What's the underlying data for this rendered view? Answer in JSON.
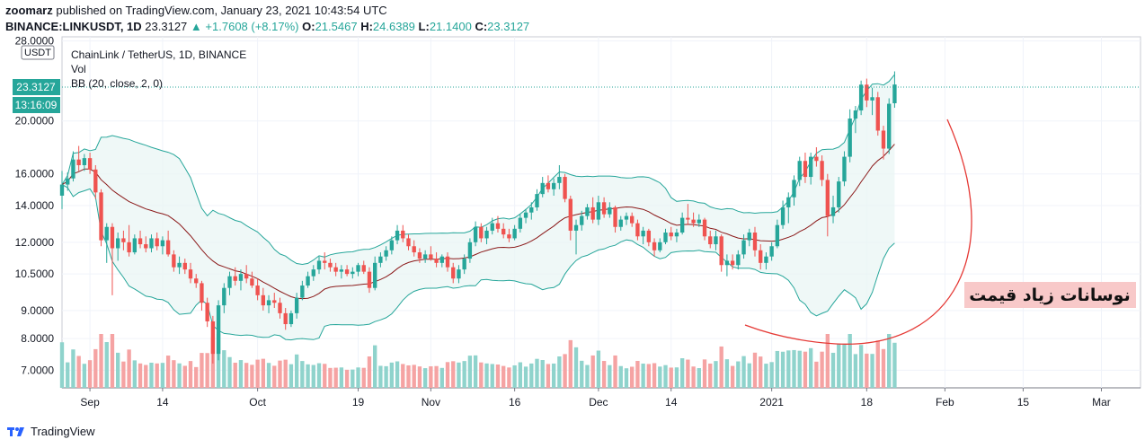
{
  "header": {
    "author": "zoomarz",
    "published_text": "published on TradingView.com, January 23, 2021 10:43:54 UTC",
    "symbol": "BINANCE:LINKUSDT, 1D",
    "last": "23.3127",
    "change_arrow": "▲",
    "change": "+1.7608 (+8.17%)",
    "o_label": "O:",
    "o": "21.5467",
    "h_label": "H:",
    "h": "24.6389",
    "l_label": "L:",
    "l": "21.1400",
    "c_label": "C:",
    "c": "23.3127"
  },
  "legend": {
    "title": "ChainLink / TetherUS, 1D, BINANCE",
    "vol": "Vol",
    "bb": "BB (20, close, 2, 0)"
  },
  "axis": {
    "currency_label": "USDT",
    "y_ticks": [
      "28.0000",
      "20.0000",
      "16.0000",
      "14.0000",
      "12.0000",
      "10.5000",
      "9.0000",
      "8.0000",
      "7.0000"
    ],
    "last_price_label": "23.3127",
    "countdown_label": "13:16:09",
    "x_ticks": [
      "Sep",
      "14",
      "Oct",
      "19",
      "Nov",
      "16",
      "Dec",
      "14",
      "2021",
      "18",
      "Feb",
      "15",
      "Mar"
    ]
  },
  "annotation": {
    "text": "نوسانات زیاد قیمت"
  },
  "footer": {
    "brand": "TradingView"
  },
  "colors": {
    "up": "#26a69a",
    "down": "#ef5350",
    "vol_up": "#8fd3cc",
    "vol_down": "#f5a3a3",
    "bb_band": "#26a69a",
    "bb_fill": "#e8f5f3",
    "bb_basis": "#8b1a1a",
    "annotation": "#e53935",
    "annotation_bg": "#f8c9c9"
  },
  "chart_data": {
    "type": "candlestick",
    "symbol": "BINANCE:LINKUSDT",
    "interval": "1D",
    "y_scale": "log",
    "ylim": [
      6.5,
      28.5
    ],
    "x_range": [
      "2020-08-27",
      "2021-03-08"
    ],
    "candles": [
      {
        "date": "2020-08-27",
        "o": 14.6,
        "h": 16.2,
        "l": 13.8,
        "c": 15.3
      },
      {
        "date": "2020-08-28",
        "o": 15.3,
        "h": 16.1,
        "l": 14.9,
        "c": 15.7
      },
      {
        "date": "2020-08-29",
        "o": 15.7,
        "h": 17.6,
        "l": 15.5,
        "c": 17.0
      },
      {
        "date": "2020-08-30",
        "o": 17.0,
        "h": 18.0,
        "l": 16.2,
        "c": 16.6
      },
      {
        "date": "2020-08-31",
        "o": 16.6,
        "h": 17.4,
        "l": 16.2,
        "c": 17.1
      },
      {
        "date": "2020-09-01",
        "o": 17.1,
        "h": 17.5,
        "l": 16.0,
        "c": 16.3
      },
      {
        "date": "2020-09-02",
        "o": 16.3,
        "h": 16.6,
        "l": 14.4,
        "c": 14.8
      },
      {
        "date": "2020-09-03",
        "o": 14.8,
        "h": 15.0,
        "l": 11.8,
        "c": 12.1
      },
      {
        "date": "2020-09-04",
        "o": 12.1,
        "h": 13.0,
        "l": 11.0,
        "c": 12.8
      },
      {
        "date": "2020-09-05",
        "o": 12.8,
        "h": 13.0,
        "l": 9.6,
        "c": 11.7
      },
      {
        "date": "2020-09-06",
        "o": 11.7,
        "h": 12.5,
        "l": 11.1,
        "c": 12.2
      },
      {
        "date": "2020-09-07",
        "o": 12.2,
        "h": 12.6,
        "l": 11.6,
        "c": 12.0
      },
      {
        "date": "2020-09-08",
        "o": 12.0,
        "h": 12.9,
        "l": 11.3,
        "c": 11.5
      },
      {
        "date": "2020-09-09",
        "o": 11.5,
        "h": 12.4,
        "l": 11.4,
        "c": 12.2
      },
      {
        "date": "2020-09-10",
        "o": 12.2,
        "h": 12.6,
        "l": 11.7,
        "c": 11.9
      },
      {
        "date": "2020-09-11",
        "o": 11.9,
        "h": 12.3,
        "l": 11.5,
        "c": 11.7
      },
      {
        "date": "2020-09-12",
        "o": 11.7,
        "h": 12.4,
        "l": 11.5,
        "c": 12.2
      },
      {
        "date": "2020-09-13",
        "o": 12.2,
        "h": 12.5,
        "l": 11.6,
        "c": 11.8
      },
      {
        "date": "2020-09-14",
        "o": 11.8,
        "h": 12.3,
        "l": 11.4,
        "c": 12.1
      },
      {
        "date": "2020-09-15",
        "o": 12.1,
        "h": 12.6,
        "l": 11.3,
        "c": 11.4
      },
      {
        "date": "2020-09-16",
        "o": 11.4,
        "h": 11.6,
        "l": 10.6,
        "c": 10.8
      },
      {
        "date": "2020-09-17",
        "o": 10.8,
        "h": 11.3,
        "l": 10.5,
        "c": 11.0
      },
      {
        "date": "2020-09-18",
        "o": 11.0,
        "h": 11.2,
        "l": 10.5,
        "c": 10.7
      },
      {
        "date": "2020-09-19",
        "o": 10.7,
        "h": 11.0,
        "l": 10.1,
        "c": 10.3
      },
      {
        "date": "2020-09-20",
        "o": 10.3,
        "h": 10.5,
        "l": 9.9,
        "c": 10.1
      },
      {
        "date": "2020-09-21",
        "o": 10.1,
        "h": 10.2,
        "l": 9.0,
        "c": 9.3
      },
      {
        "date": "2020-09-22",
        "o": 9.3,
        "h": 9.5,
        "l": 8.4,
        "c": 8.6
      },
      {
        "date": "2020-09-23",
        "o": 8.6,
        "h": 8.8,
        "l": 7.2,
        "c": 7.5
      },
      {
        "date": "2020-09-24",
        "o": 7.5,
        "h": 9.4,
        "l": 7.3,
        "c": 9.2
      },
      {
        "date": "2020-09-25",
        "o": 9.2,
        "h": 10.1,
        "l": 8.9,
        "c": 9.9
      },
      {
        "date": "2020-09-26",
        "o": 9.9,
        "h": 10.6,
        "l": 9.6,
        "c": 10.4
      },
      {
        "date": "2020-09-27",
        "o": 10.4,
        "h": 10.8,
        "l": 10.0,
        "c": 10.2
      },
      {
        "date": "2020-09-28",
        "o": 10.2,
        "h": 10.7,
        "l": 9.8,
        "c": 10.5
      },
      {
        "date": "2020-09-29",
        "o": 10.5,
        "h": 10.9,
        "l": 10.1,
        "c": 10.3
      },
      {
        "date": "2020-09-30",
        "o": 10.3,
        "h": 10.6,
        "l": 9.9,
        "c": 10.0
      },
      {
        "date": "2020-10-01",
        "o": 10.0,
        "h": 10.3,
        "l": 9.4,
        "c": 9.6
      },
      {
        "date": "2020-10-02",
        "o": 9.6,
        "h": 9.9,
        "l": 9.0,
        "c": 9.2
      },
      {
        "date": "2020-10-03",
        "o": 9.2,
        "h": 9.6,
        "l": 8.9,
        "c": 9.4
      },
      {
        "date": "2020-10-04",
        "o": 9.4,
        "h": 9.7,
        "l": 9.1,
        "c": 9.3
      },
      {
        "date": "2020-10-05",
        "o": 9.3,
        "h": 9.5,
        "l": 8.7,
        "c": 8.9
      },
      {
        "date": "2020-10-06",
        "o": 8.9,
        "h": 9.1,
        "l": 8.3,
        "c": 8.5
      },
      {
        "date": "2020-10-07",
        "o": 8.5,
        "h": 9.0,
        "l": 8.4,
        "c": 8.9
      },
      {
        "date": "2020-10-08",
        "o": 8.9,
        "h": 9.7,
        "l": 8.7,
        "c": 9.5
      },
      {
        "date": "2020-10-09",
        "o": 9.5,
        "h": 10.2,
        "l": 9.4,
        "c": 10.0
      },
      {
        "date": "2020-10-10",
        "o": 10.0,
        "h": 10.6,
        "l": 9.9,
        "c": 10.4
      },
      {
        "date": "2020-10-11",
        "o": 10.4,
        "h": 10.9,
        "l": 10.2,
        "c": 10.7
      },
      {
        "date": "2020-10-12",
        "o": 10.7,
        "h": 11.3,
        "l": 10.5,
        "c": 11.1
      },
      {
        "date": "2020-10-13",
        "o": 11.1,
        "h": 11.5,
        "l": 10.7,
        "c": 11.0
      },
      {
        "date": "2020-10-14",
        "o": 11.0,
        "h": 11.2,
        "l": 10.6,
        "c": 10.8
      },
      {
        "date": "2020-10-15",
        "o": 10.8,
        "h": 11.0,
        "l": 10.4,
        "c": 10.6
      },
      {
        "date": "2020-10-16",
        "o": 10.6,
        "h": 10.9,
        "l": 10.3,
        "c": 10.7
      },
      {
        "date": "2020-10-17",
        "o": 10.7,
        "h": 10.9,
        "l": 10.4,
        "c": 10.5
      },
      {
        "date": "2020-10-18",
        "o": 10.5,
        "h": 10.8,
        "l": 10.3,
        "c": 10.6
      },
      {
        "date": "2020-10-19",
        "o": 10.6,
        "h": 11.0,
        "l": 10.4,
        "c": 10.9
      },
      {
        "date": "2020-10-20",
        "o": 10.9,
        "h": 11.1,
        "l": 10.5,
        "c": 10.6
      },
      {
        "date": "2020-10-21",
        "o": 10.6,
        "h": 10.8,
        "l": 9.7,
        "c": 9.9
      },
      {
        "date": "2020-10-22",
        "o": 9.9,
        "h": 11.3,
        "l": 9.8,
        "c": 11.0
      },
      {
        "date": "2020-10-23",
        "o": 11.0,
        "h": 11.5,
        "l": 10.8,
        "c": 11.3
      },
      {
        "date": "2020-10-24",
        "o": 11.3,
        "h": 11.8,
        "l": 11.1,
        "c": 11.6
      },
      {
        "date": "2020-10-25",
        "o": 11.6,
        "h": 12.3,
        "l": 11.4,
        "c": 12.1
      },
      {
        "date": "2020-10-26",
        "o": 12.1,
        "h": 12.9,
        "l": 11.9,
        "c": 12.6
      },
      {
        "date": "2020-10-27",
        "o": 12.6,
        "h": 12.9,
        "l": 12.0,
        "c": 12.2
      },
      {
        "date": "2020-10-28",
        "o": 12.2,
        "h": 12.4,
        "l": 11.6,
        "c": 11.8
      },
      {
        "date": "2020-10-29",
        "o": 11.8,
        "h": 12.1,
        "l": 11.3,
        "c": 11.5
      },
      {
        "date": "2020-10-30",
        "o": 11.5,
        "h": 11.7,
        "l": 11.0,
        "c": 11.2
      },
      {
        "date": "2020-10-31",
        "o": 11.2,
        "h": 11.6,
        "l": 11.0,
        "c": 11.4
      },
      {
        "date": "2020-11-01",
        "o": 11.4,
        "h": 11.8,
        "l": 11.1,
        "c": 11.2
      },
      {
        "date": "2020-11-02",
        "o": 11.2,
        "h": 11.5,
        "l": 10.8,
        "c": 11.0
      },
      {
        "date": "2020-11-03",
        "o": 11.0,
        "h": 11.4,
        "l": 10.8,
        "c": 11.3
      },
      {
        "date": "2020-11-04",
        "o": 11.3,
        "h": 11.5,
        "l": 10.6,
        "c": 10.8
      },
      {
        "date": "2020-11-05",
        "o": 10.8,
        "h": 11.0,
        "l": 10.1,
        "c": 10.3
      },
      {
        "date": "2020-11-06",
        "o": 10.3,
        "h": 10.9,
        "l": 10.1,
        "c": 10.7
      },
      {
        "date": "2020-11-07",
        "o": 10.7,
        "h": 11.4,
        "l": 10.5,
        "c": 11.2
      },
      {
        "date": "2020-11-08",
        "o": 11.2,
        "h": 12.2,
        "l": 11.0,
        "c": 12.0
      },
      {
        "date": "2020-11-09",
        "o": 12.0,
        "h": 13.1,
        "l": 11.8,
        "c": 12.8
      },
      {
        "date": "2020-11-10",
        "o": 12.8,
        "h": 13.0,
        "l": 12.0,
        "c": 12.2
      },
      {
        "date": "2020-11-11",
        "o": 12.2,
        "h": 12.8,
        "l": 11.9,
        "c": 12.6
      },
      {
        "date": "2020-11-12",
        "o": 12.6,
        "h": 13.3,
        "l": 12.4,
        "c": 13.0
      },
      {
        "date": "2020-11-13",
        "o": 13.0,
        "h": 13.4,
        "l": 12.5,
        "c": 12.7
      },
      {
        "date": "2020-11-14",
        "o": 12.7,
        "h": 13.0,
        "l": 12.2,
        "c": 12.4
      },
      {
        "date": "2020-11-15",
        "o": 12.4,
        "h": 12.7,
        "l": 12.0,
        "c": 12.2
      },
      {
        "date": "2020-11-16",
        "o": 12.2,
        "h": 12.9,
        "l": 12.1,
        "c": 12.7
      },
      {
        "date": "2020-11-17",
        "o": 12.7,
        "h": 13.5,
        "l": 12.5,
        "c": 13.3
      },
      {
        "date": "2020-11-18",
        "o": 13.3,
        "h": 13.8,
        "l": 13.0,
        "c": 13.6
      },
      {
        "date": "2020-11-19",
        "o": 13.6,
        "h": 14.2,
        "l": 13.2,
        "c": 13.9
      },
      {
        "date": "2020-11-20",
        "o": 13.9,
        "h": 15.0,
        "l": 13.7,
        "c": 14.7
      },
      {
        "date": "2020-11-21",
        "o": 14.7,
        "h": 15.8,
        "l": 14.5,
        "c": 15.4
      },
      {
        "date": "2020-11-22",
        "o": 15.4,
        "h": 15.9,
        "l": 14.8,
        "c": 15.0
      },
      {
        "date": "2020-11-23",
        "o": 15.0,
        "h": 15.7,
        "l": 14.6,
        "c": 15.4
      },
      {
        "date": "2020-11-24",
        "o": 15.4,
        "h": 16.6,
        "l": 15.0,
        "c": 15.8
      },
      {
        "date": "2020-11-25",
        "o": 15.8,
        "h": 16.0,
        "l": 14.2,
        "c": 14.4
      },
      {
        "date": "2020-11-26",
        "o": 14.4,
        "h": 14.6,
        "l": 12.1,
        "c": 12.6
      },
      {
        "date": "2020-11-27",
        "o": 12.6,
        "h": 13.2,
        "l": 11.4,
        "c": 12.9
      },
      {
        "date": "2020-11-28",
        "o": 12.9,
        "h": 13.7,
        "l": 12.6,
        "c": 13.4
      },
      {
        "date": "2020-11-29",
        "o": 13.4,
        "h": 14.1,
        "l": 13.2,
        "c": 13.9
      },
      {
        "date": "2020-11-30",
        "o": 13.9,
        "h": 14.5,
        "l": 13.0,
        "c": 13.2
      },
      {
        "date": "2020-12-01",
        "o": 13.2,
        "h": 14.6,
        "l": 12.9,
        "c": 14.2
      },
      {
        "date": "2020-12-02",
        "o": 14.2,
        "h": 14.5,
        "l": 13.3,
        "c": 13.5
      },
      {
        "date": "2020-12-03",
        "o": 13.5,
        "h": 14.2,
        "l": 13.3,
        "c": 13.9
      },
      {
        "date": "2020-12-04",
        "o": 13.9,
        "h": 14.0,
        "l": 12.5,
        "c": 12.8
      },
      {
        "date": "2020-12-05",
        "o": 12.8,
        "h": 13.4,
        "l": 12.6,
        "c": 13.2
      },
      {
        "date": "2020-12-06",
        "o": 13.2,
        "h": 13.6,
        "l": 12.9,
        "c": 13.4
      },
      {
        "date": "2020-12-07",
        "o": 13.4,
        "h": 13.6,
        "l": 12.8,
        "c": 13.0
      },
      {
        "date": "2020-12-08",
        "o": 13.0,
        "h": 13.2,
        "l": 12.1,
        "c": 12.3
      },
      {
        "date": "2020-12-09",
        "o": 12.3,
        "h": 12.8,
        "l": 11.9,
        "c": 12.6
      },
      {
        "date": "2020-12-10",
        "o": 12.6,
        "h": 12.7,
        "l": 11.8,
        "c": 12.0
      },
      {
        "date": "2020-12-11",
        "o": 12.0,
        "h": 12.2,
        "l": 11.3,
        "c": 11.6
      },
      {
        "date": "2020-12-12",
        "o": 11.6,
        "h": 12.2,
        "l": 11.5,
        "c": 12.0
      },
      {
        "date": "2020-12-13",
        "o": 12.0,
        "h": 12.7,
        "l": 11.9,
        "c": 12.5
      },
      {
        "date": "2020-12-14",
        "o": 12.5,
        "h": 12.8,
        "l": 12.1,
        "c": 12.3
      },
      {
        "date": "2020-12-15",
        "o": 12.3,
        "h": 12.7,
        "l": 12.0,
        "c": 12.5
      },
      {
        "date": "2020-12-16",
        "o": 12.5,
        "h": 13.6,
        "l": 12.4,
        "c": 13.3
      },
      {
        "date": "2020-12-17",
        "o": 13.3,
        "h": 14.1,
        "l": 12.9,
        "c": 13.2
      },
      {
        "date": "2020-12-18",
        "o": 13.2,
        "h": 13.6,
        "l": 12.8,
        "c": 13.0
      },
      {
        "date": "2020-12-19",
        "o": 13.0,
        "h": 13.5,
        "l": 12.8,
        "c": 13.2
      },
      {
        "date": "2020-12-20",
        "o": 13.2,
        "h": 13.3,
        "l": 12.1,
        "c": 12.3
      },
      {
        "date": "2020-12-21",
        "o": 12.3,
        "h": 12.6,
        "l": 11.7,
        "c": 11.9
      },
      {
        "date": "2020-12-22",
        "o": 11.9,
        "h": 12.6,
        "l": 11.6,
        "c": 12.3
      },
      {
        "date": "2020-12-23",
        "o": 12.3,
        "h": 12.4,
        "l": 10.6,
        "c": 10.9
      },
      {
        "date": "2020-12-24",
        "o": 10.9,
        "h": 11.4,
        "l": 10.4,
        "c": 11.1
      },
      {
        "date": "2020-12-25",
        "o": 11.1,
        "h": 11.4,
        "l": 10.7,
        "c": 10.9
      },
      {
        "date": "2020-12-26",
        "o": 10.9,
        "h": 11.6,
        "l": 10.7,
        "c": 11.4
      },
      {
        "date": "2020-12-27",
        "o": 11.4,
        "h": 12.4,
        "l": 11.2,
        "c": 12.1
      },
      {
        "date": "2020-12-28",
        "o": 12.1,
        "h": 12.7,
        "l": 11.8,
        "c": 12.5
      },
      {
        "date": "2020-12-29",
        "o": 12.5,
        "h": 12.8,
        "l": 11.3,
        "c": 11.6
      },
      {
        "date": "2020-12-30",
        "o": 11.6,
        "h": 11.9,
        "l": 10.7,
        "c": 11.0
      },
      {
        "date": "2020-12-31",
        "o": 11.0,
        "h": 11.5,
        "l": 10.7,
        "c": 11.3
      },
      {
        "date": "2021-01-01",
        "o": 11.3,
        "h": 12.0,
        "l": 11.1,
        "c": 11.8
      },
      {
        "date": "2021-01-02",
        "o": 11.8,
        "h": 13.2,
        "l": 11.7,
        "c": 12.9
      },
      {
        "date": "2021-01-03",
        "o": 12.9,
        "h": 14.3,
        "l": 12.7,
        "c": 13.9
      },
      {
        "date": "2021-01-04",
        "o": 13.9,
        "h": 14.8,
        "l": 13.0,
        "c": 14.5
      },
      {
        "date": "2021-01-05",
        "o": 14.5,
        "h": 15.9,
        "l": 14.0,
        "c": 15.6
      },
      {
        "date": "2021-01-06",
        "o": 15.6,
        "h": 17.2,
        "l": 15.2,
        "c": 16.9
      },
      {
        "date": "2021-01-07",
        "o": 16.9,
        "h": 17.5,
        "l": 15.4,
        "c": 15.8
      },
      {
        "date": "2021-01-08",
        "o": 15.8,
        "h": 17.5,
        "l": 15.3,
        "c": 17.2
      },
      {
        "date": "2021-01-09",
        "o": 17.2,
        "h": 17.9,
        "l": 16.5,
        "c": 16.9
      },
      {
        "date": "2021-01-10",
        "o": 16.9,
        "h": 17.3,
        "l": 15.2,
        "c": 15.6
      },
      {
        "date": "2021-01-11",
        "o": 15.6,
        "h": 16.0,
        "l": 12.3,
        "c": 13.4
      },
      {
        "date": "2021-01-12",
        "o": 13.4,
        "h": 14.6,
        "l": 13.0,
        "c": 13.9
      },
      {
        "date": "2021-01-13",
        "o": 13.9,
        "h": 15.8,
        "l": 13.6,
        "c": 15.5
      },
      {
        "date": "2021-01-14",
        "o": 15.5,
        "h": 17.6,
        "l": 15.2,
        "c": 17.2
      },
      {
        "date": "2021-01-15",
        "o": 17.2,
        "h": 21.0,
        "l": 16.8,
        "c": 20.2
      },
      {
        "date": "2021-01-16",
        "o": 20.2,
        "h": 21.3,
        "l": 19.0,
        "c": 20.9
      },
      {
        "date": "2021-01-17",
        "o": 20.9,
        "h": 23.7,
        "l": 20.5,
        "c": 23.3
      },
      {
        "date": "2021-01-18",
        "o": 23.3,
        "h": 23.9,
        "l": 21.2,
        "c": 21.8
      },
      {
        "date": "2021-01-19",
        "o": 21.8,
        "h": 23.0,
        "l": 20.5,
        "c": 22.1
      },
      {
        "date": "2021-01-20",
        "o": 22.1,
        "h": 22.6,
        "l": 18.8,
        "c": 19.2
      },
      {
        "date": "2021-01-21",
        "o": 19.2,
        "h": 19.6,
        "l": 17.0,
        "c": 17.8
      },
      {
        "date": "2021-01-22",
        "o": 17.8,
        "h": 22.0,
        "l": 17.4,
        "c": 21.5
      },
      {
        "date": "2021-01-23",
        "o": 21.5467,
        "h": 24.6389,
        "l": 21.14,
        "c": 23.3127
      }
    ]
  }
}
